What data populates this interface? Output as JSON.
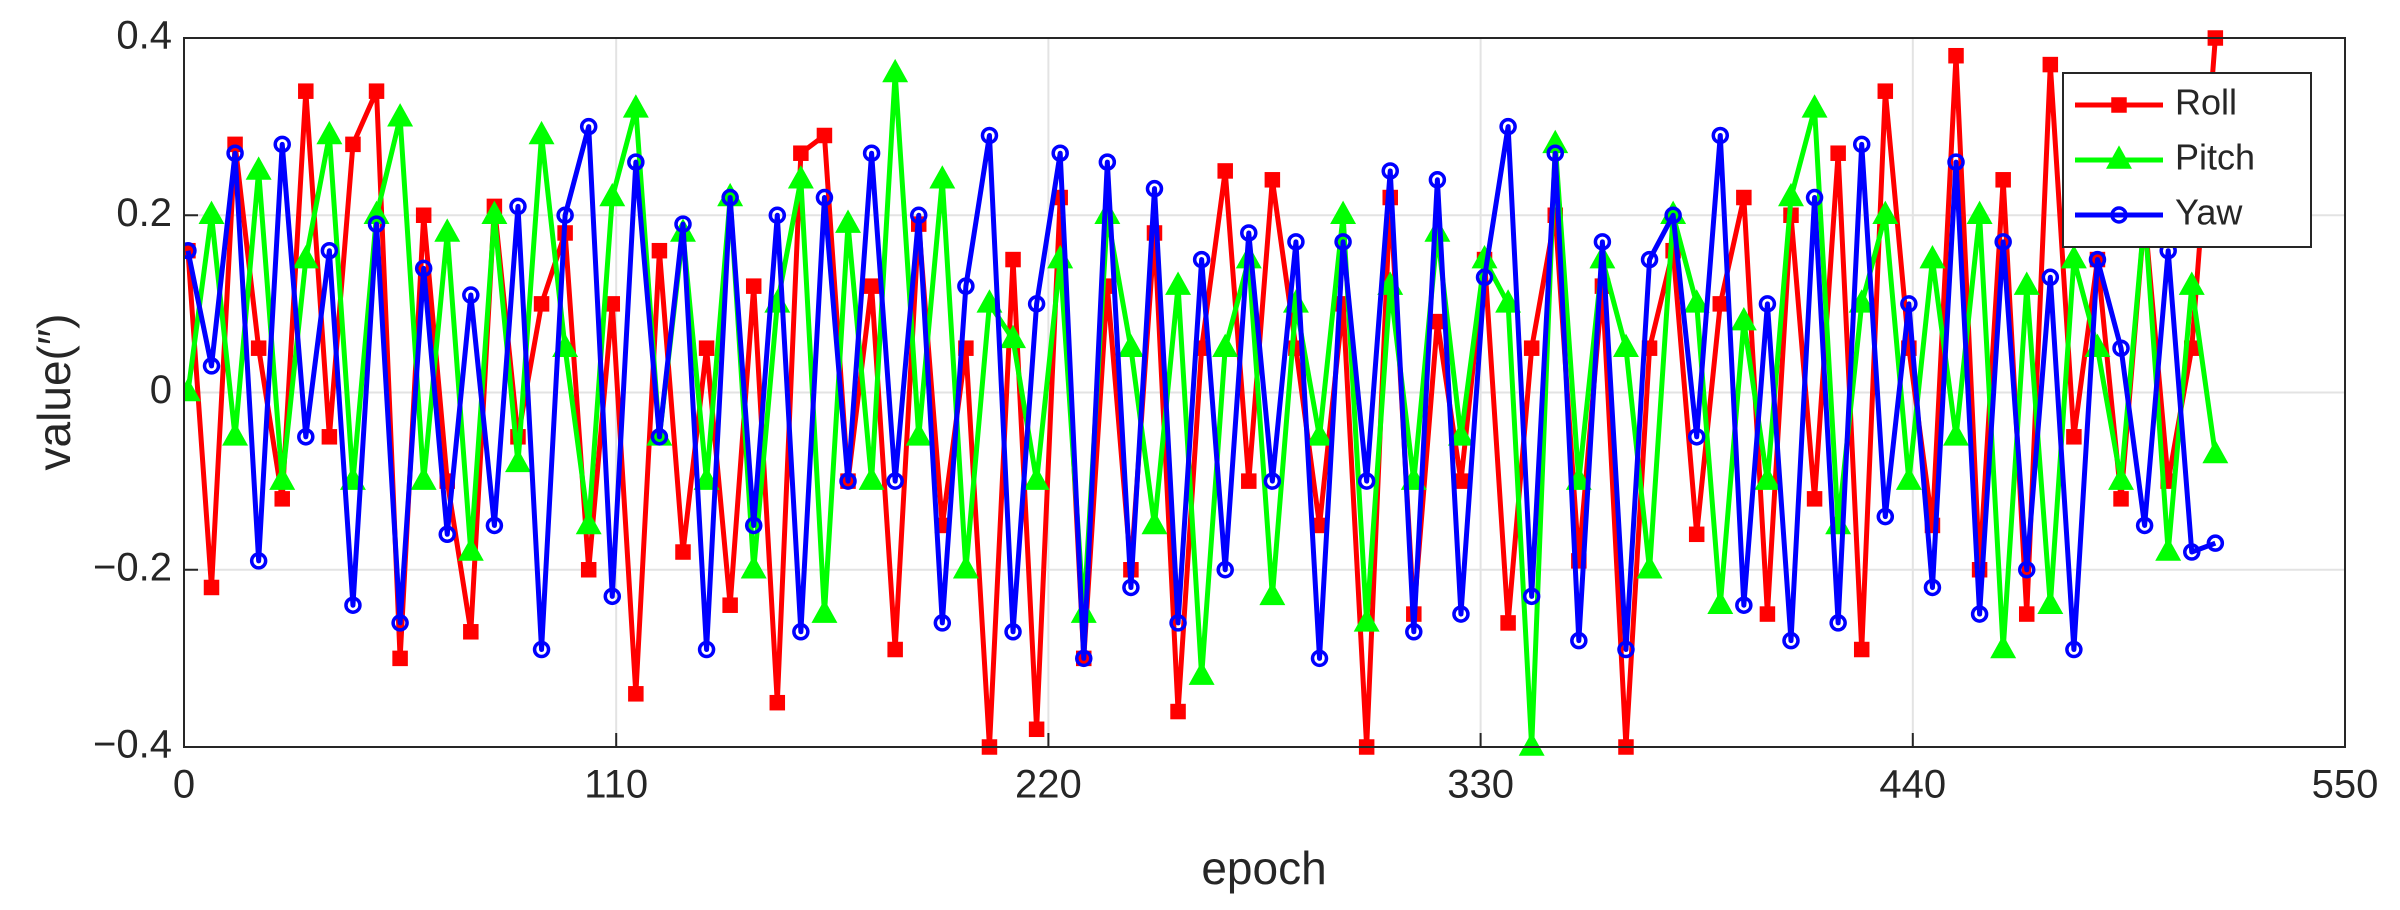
{
  "chart_data": {
    "type": "line",
    "xlabel": "epoch",
    "ylabel": "value(″)",
    "x": [
      1,
      7,
      13,
      19,
      25,
      31,
      37,
      43,
      49,
      55,
      61,
      67,
      73,
      79,
      85,
      91,
      97,
      103,
      109,
      115,
      121,
      127,
      133,
      139,
      145,
      151,
      157,
      163,
      169,
      175,
      181,
      187,
      193,
      199,
      205,
      211,
      217,
      223,
      229,
      235,
      241,
      247,
      253,
      259,
      265,
      271,
      277,
      283,
      289,
      295,
      301,
      307,
      313,
      319,
      325,
      331,
      337,
      343,
      349,
      355,
      361,
      367,
      373,
      379,
      385,
      391,
      397,
      403,
      409,
      415,
      421,
      427,
      433,
      439,
      445,
      451,
      457,
      463,
      469,
      475,
      481,
      487,
      493,
      499,
      505,
      511,
      517
    ],
    "series": [
      {
        "name": "Roll",
        "color": "#ff0000",
        "marker": "square",
        "values": [
          0.16,
          -0.22,
          0.28,
          0.05,
          -0.12,
          0.34,
          -0.05,
          0.28,
          0.34,
          -0.3,
          0.2,
          -0.1,
          -0.27,
          0.21,
          -0.05,
          0.1,
          0.18,
          -0.2,
          0.1,
          -0.34,
          0.16,
          -0.18,
          0.05,
          -0.24,
          0.12,
          -0.35,
          0.27,
          0.29,
          -0.1,
          0.12,
          -0.29,
          0.19,
          -0.15,
          0.05,
          -0.4,
          0.15,
          -0.38,
          0.22,
          -0.3,
          0.12,
          -0.2,
          0.18,
          -0.36,
          0.05,
          0.25,
          -0.1,
          0.24,
          0.05,
          -0.15,
          0.1,
          -0.4,
          0.22,
          -0.25,
          0.08,
          -0.1,
          0.15,
          -0.26,
          0.05,
          0.2,
          -0.19,
          0.12,
          -0.4,
          0.05,
          0.16,
          -0.16,
          0.1,
          0.22,
          -0.25,
          0.2,
          -0.12,
          0.27,
          -0.29,
          0.34,
          0.05,
          -0.15,
          0.38,
          -0.2,
          0.24,
          -0.25,
          0.37,
          -0.05,
          0.15,
          -0.12,
          0.2,
          -0.1,
          0.05,
          0.4
        ]
      },
      {
        "name": "Pitch",
        "color": "#00ff00",
        "marker": "triangle",
        "values": [
          0,
          0.2,
          -0.05,
          0.25,
          -0.1,
          0.15,
          0.29,
          -0.1,
          0.2,
          0.31,
          -0.1,
          0.18,
          -0.18,
          0.2,
          -0.08,
          0.29,
          0.05,
          -0.15,
          0.22,
          0.32,
          -0.05,
          0.18,
          -0.1,
          0.22,
          -0.2,
          0.1,
          0.24,
          -0.25,
          0.19,
          -0.1,
          0.36,
          -0.05,
          0.24,
          -0.2,
          0.1,
          0.06,
          -0.1,
          0.15,
          -0.25,
          0.2,
          0.05,
          -0.15,
          0.12,
          -0.32,
          0.05,
          0.15,
          -0.23,
          0.1,
          -0.05,
          0.2,
          -0.26,
          0.12,
          -0.1,
          0.18,
          -0.05,
          0.15,
          0.1,
          -0.4,
          0.28,
          -0.1,
          0.15,
          0.05,
          -0.2,
          0.2,
          0.1,
          -0.24,
          0.08,
          -0.1,
          0.22,
          0.32,
          -0.15,
          0.1,
          0.2,
          -0.1,
          0.15,
          -0.05,
          0.2,
          -0.29,
          0.12,
          -0.24,
          0.15,
          0.05,
          -0.1,
          0.2,
          -0.18,
          0.12,
          -0.07
        ]
      },
      {
        "name": "Yaw",
        "color": "#0000ff",
        "marker": "circle",
        "values": [
          0.16,
          0.03,
          0.27,
          -0.19,
          0.28,
          -0.05,
          0.16,
          -0.24,
          0.19,
          -0.26,
          0.14,
          -0.16,
          0.11,
          -0.15,
          0.21,
          -0.29,
          0.2,
          0.3,
          -0.23,
          0.26,
          -0.05,
          0.19,
          -0.29,
          0.22,
          -0.15,
          0.2,
          -0.27,
          0.22,
          -0.1,
          0.27,
          -0.1,
          0.2,
          -0.26,
          0.12,
          0.29,
          -0.27,
          0.1,
          0.27,
          -0.3,
          0.26,
          -0.22,
          0.23,
          -0.26,
          0.15,
          -0.2,
          0.18,
          -0.1,
          0.17,
          -0.3,
          0.17,
          -0.1,
          0.25,
          -0.27,
          0.24,
          -0.25,
          0.13,
          0.3,
          -0.23,
          0.27,
          -0.28,
          0.17,
          -0.29,
          0.15,
          0.2,
          -0.05,
          0.29,
          -0.24,
          0.1,
          -0.28,
          0.22,
          -0.26,
          0.28,
          -0.14,
          0.1,
          -0.22,
          0.26,
          -0.25,
          0.17,
          -0.2,
          0.13,
          -0.29,
          0.15,
          0.05,
          -0.15,
          0.16,
          -0.18,
          -0.17
        ]
      }
    ],
    "xlim": [
      0,
      550
    ],
    "xticks": [
      0,
      110,
      220,
      330,
      440,
      550
    ],
    "ylim": [
      -0.4,
      0.4
    ],
    "yticks": [
      {
        "value": -0.4,
        "label": "−0.4"
      },
      {
        "value": -0.2,
        "label": "−0.2"
      },
      0,
      0.2,
      0.4
    ],
    "grid": true,
    "legend": "top-right"
  }
}
